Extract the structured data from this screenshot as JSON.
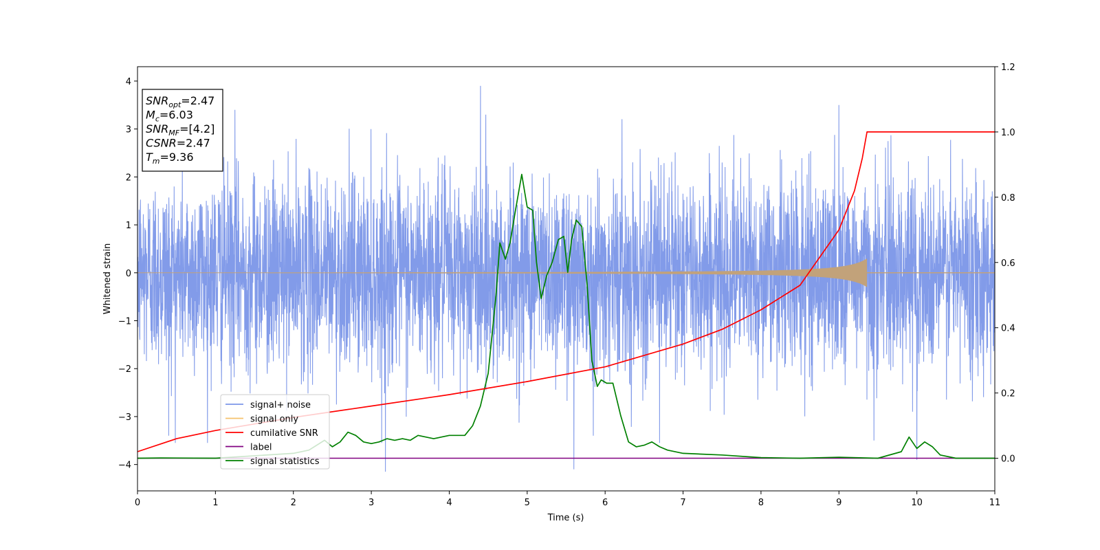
{
  "colors": {
    "noise": "#7b96e8",
    "signal": "#f5c26b",
    "signal_overlap": "#c2a27a",
    "cumulative_snr": "#ff0000",
    "label": "#800080",
    "statistics": "#008000"
  },
  "chart_data": {
    "type": "line",
    "xlabel": "Time (s)",
    "ylabel": "Whitened strain",
    "xlim": [
      0,
      11
    ],
    "ylim": [
      -4.55,
      4.3
    ],
    "ylim_right": [
      -0.1,
      1.2
    ],
    "x_ticks": [
      "0",
      "1",
      "2",
      "3",
      "4",
      "5",
      "6",
      "7",
      "8",
      "9",
      "10",
      "11"
    ],
    "y_ticks": [
      "4",
      "3",
      "2",
      "1",
      "0",
      "−1",
      "−2",
      "−3",
      "−4"
    ],
    "y_ticks_right": [
      "1.2",
      "1.0",
      "0.8",
      "0.6",
      "0.4",
      "0.2",
      "0.0"
    ],
    "grid": false,
    "legend_position": "lower-left",
    "info_box": {
      "position": "top-left",
      "lines": [
        {
          "sym": "SNR",
          "sub": "opt",
          "rest": "=2.47"
        },
        {
          "sym": "M",
          "sub": "c",
          "rest": "=6.03"
        },
        {
          "sym": "SNR",
          "sub": "MF",
          "rest": "=[4.2]"
        },
        {
          "sym": "CSNR",
          "sub": "",
          "rest": "=2.47"
        },
        {
          "sym": "T",
          "sub": "m",
          "rest": "=9.36"
        }
      ]
    },
    "series": [
      {
        "name": "signal+ noise",
        "axis": "left",
        "style": "noise band",
        "std": 1.0,
        "range": [
          -4.15,
          3.9
        ],
        "notable_spikes": [
          [
            0.4,
            -3.4
          ],
          [
            1.25,
            3.4
          ],
          [
            3.18,
            -4.15
          ],
          [
            4.4,
            3.9
          ],
          [
            5.6,
            -4.1
          ],
          [
            5.85,
            -3.4
          ],
          [
            6.7,
            -3.55
          ],
          [
            9.0,
            3.5
          ],
          [
            9.45,
            -3.5
          ],
          [
            10.0,
            -3.9
          ]
        ]
      },
      {
        "name": "signal only",
        "axis": "left",
        "style": "chirp",
        "merger_time": 9.36,
        "peak_amplitude": 0.3
      },
      {
        "name": "cumilative SNR",
        "axis": "right",
        "x": [
          0,
          0.5,
          1,
          2,
          3,
          4,
          5,
          6,
          7,
          7.5,
          8,
          8.5,
          9,
          9.2,
          9.3,
          9.36,
          11
        ],
        "y": [
          0.02,
          0.06,
          0.085,
          0.125,
          0.16,
          0.195,
          0.235,
          0.28,
          0.35,
          0.395,
          0.455,
          0.53,
          0.7,
          0.82,
          0.92,
          1.0,
          1.0
        ]
      },
      {
        "name": "label",
        "axis": "right",
        "x": [
          0,
          11
        ],
        "y": [
          0.0,
          0.0
        ]
      },
      {
        "name": "signal statistics",
        "axis": "right",
        "x": [
          0,
          0.3,
          1.0,
          2.0,
          2.2,
          2.4,
          2.5,
          2.6,
          2.7,
          2.8,
          2.9,
          3.0,
          3.1,
          3.2,
          3.3,
          3.4,
          3.5,
          3.6,
          3.7,
          3.8,
          3.9,
          4.0,
          4.1,
          4.2,
          4.3,
          4.4,
          4.5,
          4.6,
          4.65,
          4.72,
          4.78,
          4.85,
          4.93,
          5.0,
          5.07,
          5.12,
          5.18,
          5.25,
          5.32,
          5.4,
          5.47,
          5.52,
          5.57,
          5.63,
          5.7,
          5.77,
          5.83,
          5.9,
          5.95,
          6.02,
          6.1,
          6.2,
          6.3,
          6.4,
          6.5,
          6.6,
          6.7,
          6.8,
          7.0,
          7.5,
          8.0,
          8.5,
          9.0,
          9.5,
          9.8,
          9.9,
          10.0,
          10.1,
          10.2,
          10.3,
          10.5,
          11.0
        ],
        "y": [
          0.0,
          0.001,
          0.0,
          0.015,
          0.025,
          0.055,
          0.035,
          0.05,
          0.08,
          0.07,
          0.05,
          0.045,
          0.05,
          0.06,
          0.055,
          0.06,
          0.055,
          0.07,
          0.065,
          0.06,
          0.065,
          0.07,
          0.07,
          0.07,
          0.1,
          0.16,
          0.26,
          0.5,
          0.66,
          0.61,
          0.66,
          0.76,
          0.87,
          0.77,
          0.76,
          0.6,
          0.49,
          0.56,
          0.6,
          0.67,
          0.68,
          0.57,
          0.67,
          0.73,
          0.71,
          0.53,
          0.3,
          0.22,
          0.24,
          0.23,
          0.23,
          0.13,
          0.05,
          0.035,
          0.04,
          0.05,
          0.035,
          0.025,
          0.015,
          0.01,
          0.002,
          0.0,
          0.003,
          0.0,
          0.02,
          0.065,
          0.03,
          0.05,
          0.035,
          0.01,
          0.0,
          0.0
        ]
      }
    ]
  }
}
